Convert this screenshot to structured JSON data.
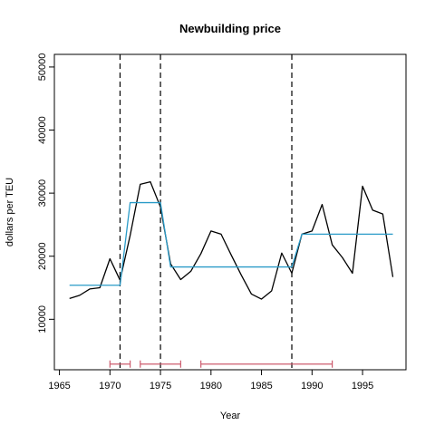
{
  "chart_data": {
    "type": "line",
    "title": "Newbuilding price",
    "xlabel": "Year",
    "ylabel": "dollars per TEU",
    "xlim": [
      1964.5,
      1999.3
    ],
    "ylim": [
      2000,
      52000
    ],
    "xticks": [
      1965,
      1970,
      1975,
      1980,
      1985,
      1990,
      1995
    ],
    "yticks": [
      10000,
      20000,
      30000,
      40000,
      50000
    ],
    "grid": false,
    "series": [
      {
        "color": "#000000",
        "x": [
          1966,
          1967,
          1968,
          1969,
          1970,
          1971,
          1972,
          1973,
          1974,
          1975,
          1976,
          1977,
          1978,
          1979,
          1980,
          1981,
          1982,
          1983,
          1984,
          1985,
          1986,
          1987,
          1988,
          1989,
          1990,
          1991,
          1992,
          1993,
          1994,
          1995,
          1996,
          1997,
          1998
        ],
        "values": [
          13300,
          13800,
          14800,
          15000,
          19600,
          16200,
          23300,
          31400,
          31800,
          27800,
          18800,
          16300,
          17600,
          20400,
          24000,
          23500,
          20200,
          17000,
          14000,
          13200,
          14500,
          20500,
          17300,
          23500,
          24000,
          28200,
          21800,
          19800,
          17300,
          31100,
          27300,
          26700,
          16700
        ]
      },
      {
        "color": "#2a9bc8",
        "x": [
          1966,
          1971,
          1972,
          1975,
          1976,
          1988,
          1989,
          1998
        ],
        "values": [
          15400,
          15400,
          28500,
          28500,
          18300,
          18300,
          23500,
          23500
        ]
      }
    ],
    "breaks": [
      1971,
      1975,
      1988
    ],
    "break_color": "#000000",
    "confidence_intervals": [
      {
        "from": 1970,
        "to": 1972
      },
      {
        "from": 1973,
        "to": 1977
      },
      {
        "from": 1979,
        "to": 1992
      }
    ],
    "ci_y": 2900,
    "ci_color": "#cd5c6e"
  }
}
